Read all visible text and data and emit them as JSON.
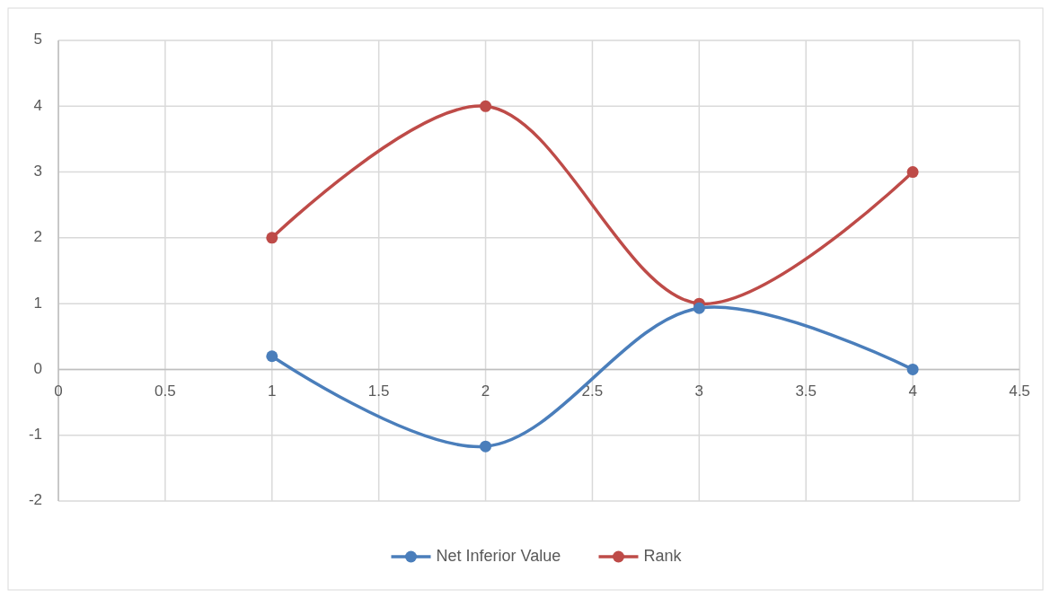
{
  "chart_data": {
    "type": "line",
    "x": [
      1,
      2,
      3,
      4
    ],
    "series": [
      {
        "name": "Net Inferior Value",
        "color": "#4a7ebb",
        "values": [
          0.2,
          -1.17,
          0.93,
          0
        ]
      },
      {
        "name": "Rank",
        "color": "#be4b48",
        "values": [
          2,
          4,
          1,
          3
        ]
      }
    ],
    "xlim": [
      0,
      4.5
    ],
    "xticks": [
      0,
      0.5,
      1,
      1.5,
      2,
      2.5,
      3,
      3.5,
      4,
      4.5
    ],
    "ylim": [
      -2,
      5
    ],
    "yticks": [
      -2,
      -1,
      0,
      1,
      2,
      3,
      4,
      5
    ],
    "grid": true,
    "legend": "bottom",
    "marker": "circle",
    "line_style": "solid"
  }
}
